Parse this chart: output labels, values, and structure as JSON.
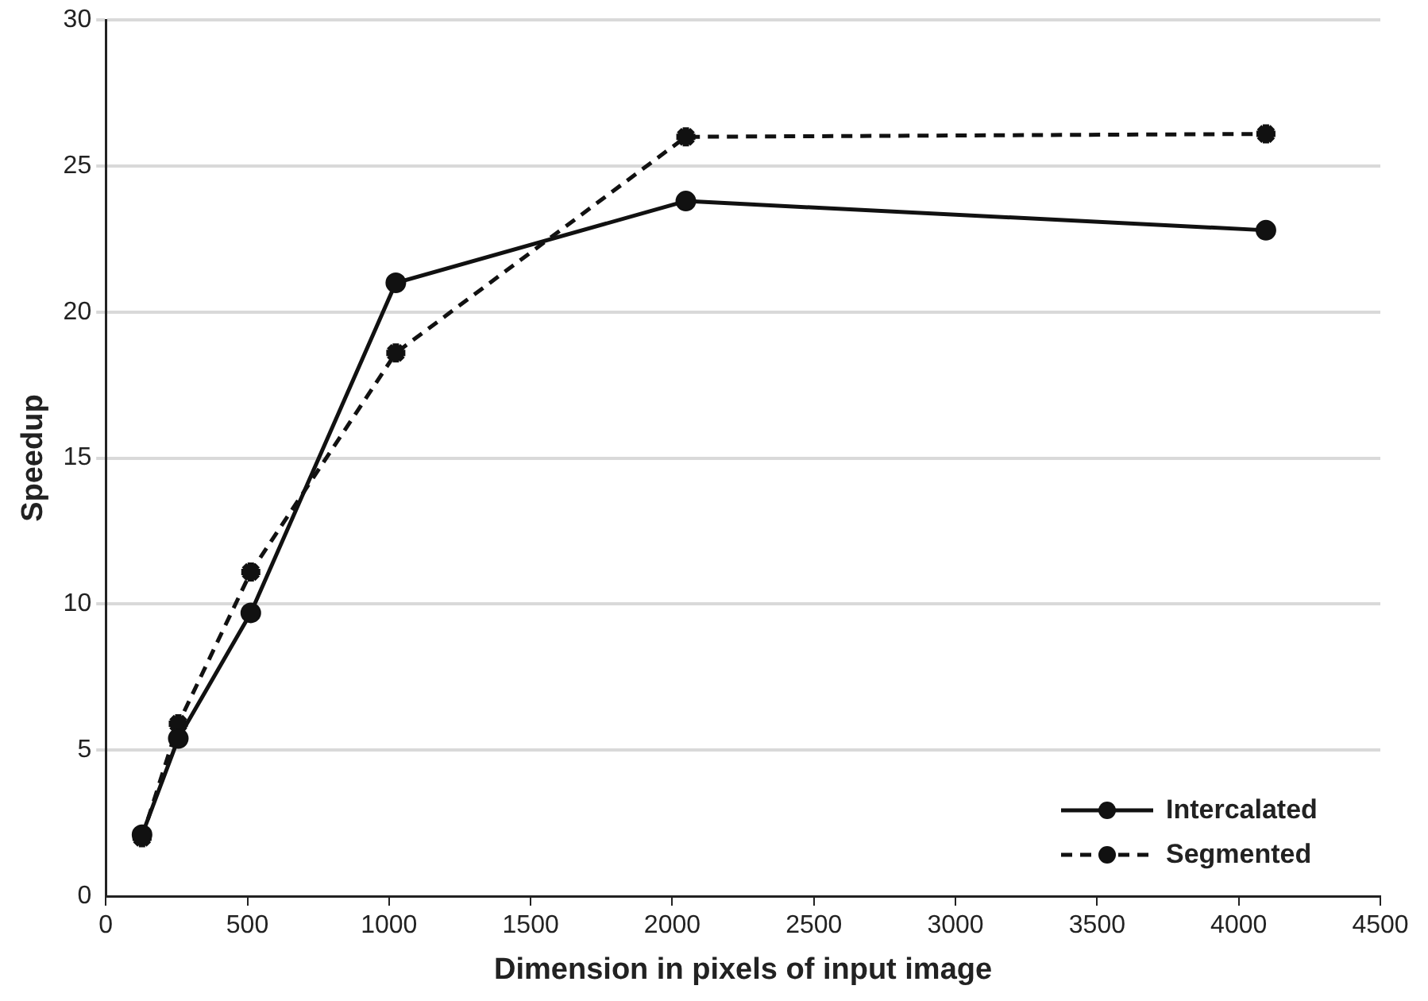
{
  "chart_data": {
    "type": "line",
    "xlabel": "Dimension in pixels of input image",
    "ylabel": "Speedup",
    "x": [
      128,
      256,
      512,
      1024,
      2048,
      4096
    ],
    "series": [
      {
        "name": "Intercalated",
        "color": "#111111",
        "values": [
          2.1,
          5.4,
          9.7,
          21.0,
          23.8,
          22.8
        ],
        "marker": "circle",
        "line_style": "solid"
      },
      {
        "name": "Segmented",
        "color": "#111111",
        "values": [
          2.0,
          5.9,
          11.1,
          18.6,
          26.0,
          26.1
        ],
        "marker": "cross",
        "line_style": "dashed"
      }
    ],
    "xlim": [
      0,
      4500
    ],
    "xticks": [
      0,
      500,
      1000,
      1500,
      2000,
      2500,
      3000,
      3500,
      4000,
      4500
    ],
    "ylim": [
      0,
      30
    ],
    "yticks": [
      0,
      5,
      10,
      15,
      20,
      25,
      30
    ],
    "grid": "y",
    "legend": "bottom right"
  }
}
